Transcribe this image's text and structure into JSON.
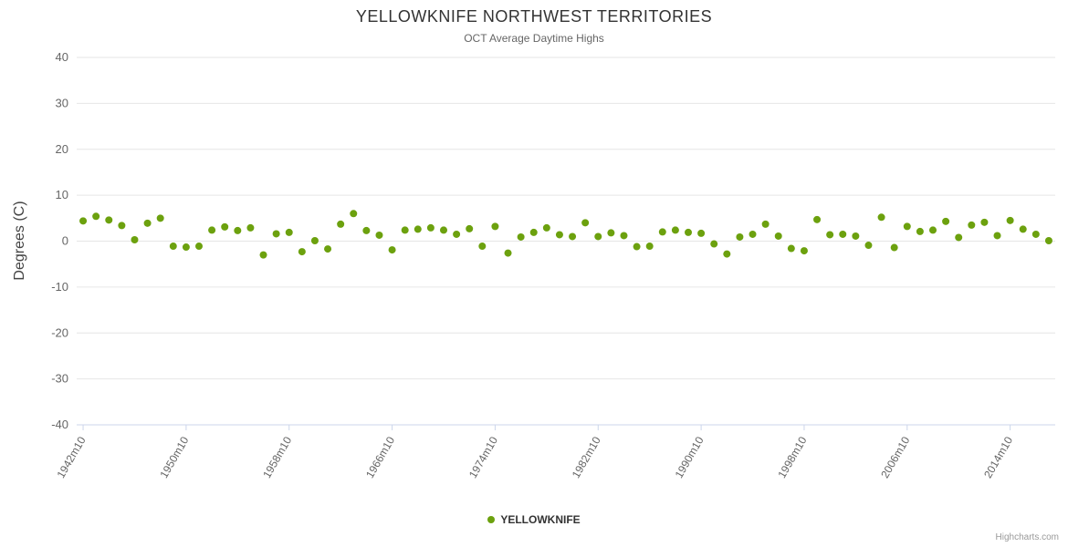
{
  "chart": {
    "title": "YELLOWKNIFE NORTHWEST TERRITORIES",
    "subtitle": "OCT Average Daytime Highs",
    "credits": "Highcharts.com"
  },
  "legend": {
    "items": [
      {
        "label": "YELLOWKNIFE",
        "color": "#6CA10E"
      }
    ]
  },
  "chart_data": {
    "type": "scatter",
    "title": "YELLOWKNIFE NORTHWEST TERRITORIES",
    "subtitle": "OCT Average Daytime Highs",
    "xlabel": "",
    "ylabel": "Degrees (C)",
    "ylim": [
      -40,
      40
    ],
    "ytick_step": 10,
    "y_tick_labels": [
      "40",
      "30",
      "20",
      "10",
      "0",
      "-10",
      "-20",
      "-30",
      "-40"
    ],
    "x_tick_labels": [
      "1942m10",
      "1950m10",
      "1958m10",
      "1966m10",
      "1974m10",
      "1982m10",
      "1990m10",
      "1998m10",
      "2006m10",
      "2014m10"
    ],
    "x_start_year": 1942,
    "x_end_year": 2017,
    "x_label_suffix": "m10",
    "x_tick_interval": 8,
    "grid": true,
    "legend_position": "bottom-center",
    "series": [
      {
        "name": "YELLOWKNIFE",
        "color": "#6CA10E",
        "marker": "circle",
        "values": [
          4.4,
          5.4,
          4.6,
          3.4,
          0.3,
          3.9,
          5.0,
          -1.1,
          -1.3,
          -1.1,
          2.4,
          3.1,
          2.3,
          2.9,
          -3.0,
          1.6,
          1.9,
          -2.3,
          0.1,
          -1.7,
          3.7,
          6.0,
          2.3,
          1.3,
          -1.9,
          2.4,
          2.6,
          2.9,
          2.4,
          1.5,
          2.7,
          -1.1,
          3.2,
          -2.6,
          0.9,
          1.9,
          2.9,
          1.4,
          1.0,
          4.0,
          1.0,
          1.8,
          1.2,
          -1.2,
          -1.1,
          2.0,
          2.4,
          1.9,
          1.7,
          -0.6,
          -2.8,
          0.9,
          1.5,
          3.7,
          1.1,
          -1.6,
          -2.1,
          4.7,
          1.4,
          1.5,
          1.1,
          -0.9,
          5.2,
          -1.4,
          3.2,
          2.1,
          2.4,
          4.3,
          0.8,
          3.5,
          4.1,
          1.2,
          4.5,
          2.6,
          1.5,
          0.1
        ]
      }
    ]
  }
}
